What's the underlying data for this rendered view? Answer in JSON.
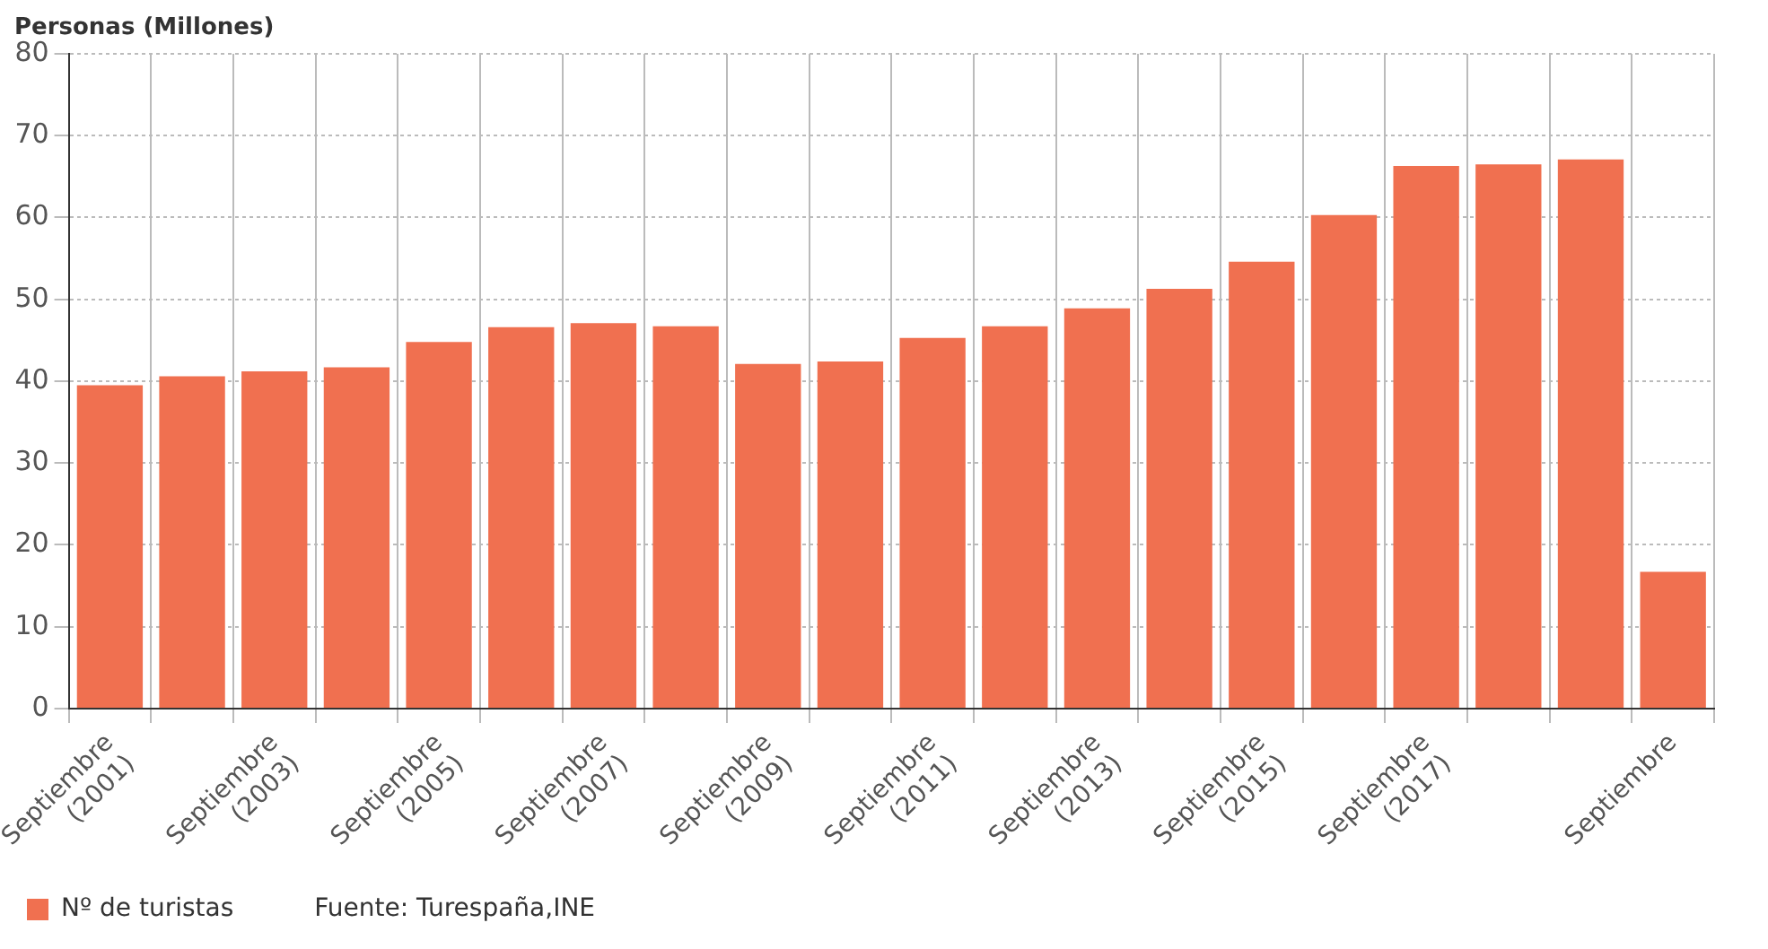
{
  "chart_data": {
    "type": "bar",
    "ylabel": "Personas (Millones)",
    "categories": [
      "Septiembre (2001)",
      null,
      "Septiembre (2003)",
      null,
      "Septiembre (2005)",
      null,
      "Septiembre (2007)",
      null,
      "Septiembre (2009)",
      null,
      "Septiembre (2011)",
      null,
      "Septiembre (2013)",
      null,
      "Septiembre (2015)",
      null,
      "Septiembre (2017)",
      null,
      null,
      "Septiembre"
    ],
    "series": [
      {
        "name": "Nº de turistas",
        "color": "#f07050",
        "values": [
          39.5,
          40.6,
          41.2,
          41.7,
          44.8,
          46.6,
          47.1,
          46.7,
          42.1,
          42.4,
          45.3,
          46.7,
          48.9,
          51.3,
          54.6,
          60.3,
          66.3,
          66.5,
          67.1,
          16.7
        ]
      }
    ],
    "ylim": [
      0,
      80
    ],
    "yticks": [
      0,
      10,
      20,
      30,
      40,
      50,
      60,
      70,
      80
    ],
    "grid": true,
    "legend": "bottom",
    "annotations": [
      "Fuente: Turespaña,INE"
    ]
  }
}
